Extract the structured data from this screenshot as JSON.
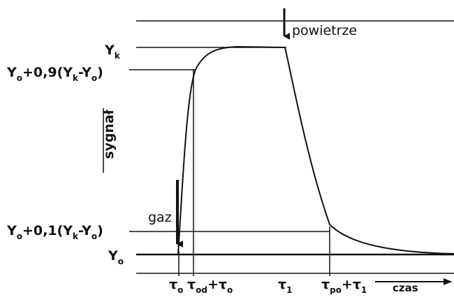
{
  "labels": {
    "top_yk": [
      {
        "main": "Y",
        "sub": "k"
      }
    ],
    "y09": [
      {
        "main": "Y",
        "sub": "o"
      },
      {
        "main": "+0,9(Y",
        "sub": "k"
      },
      {
        "main": "-Y",
        "sub": "o"
      },
      {
        "main": ")"
      }
    ],
    "signal": [
      {
        "main": "sygnał"
      }
    ],
    "gas": [
      {
        "main": "gaz"
      }
    ],
    "y01": [
      {
        "main": "Y",
        "sub": "o"
      },
      {
        "main": "+0,1(Y",
        "sub": "k"
      },
      {
        "main": "-Y",
        "sub": "o"
      },
      {
        "main": ")"
      }
    ],
    "yo": [
      {
        "main": "Y",
        "sub": "o"
      }
    ],
    "air": [
      {
        "main": "powietrze"
      }
    ],
    "t0": [
      {
        "main": "τ",
        "sub": "o"
      }
    ],
    "tod": [
      {
        "main": "τ",
        "sub": "od"
      },
      {
        "main": "+τ",
        "sub": "o"
      }
    ],
    "t1": [
      {
        "main": "τ",
        "sub": "1"
      }
    ],
    "tpo": [
      {
        "main": "τ",
        "sub": "po"
      },
      {
        "main": "+τ",
        "sub": "1"
      }
    ],
    "time": [
      {
        "main": "czas"
      }
    ]
  }
}
